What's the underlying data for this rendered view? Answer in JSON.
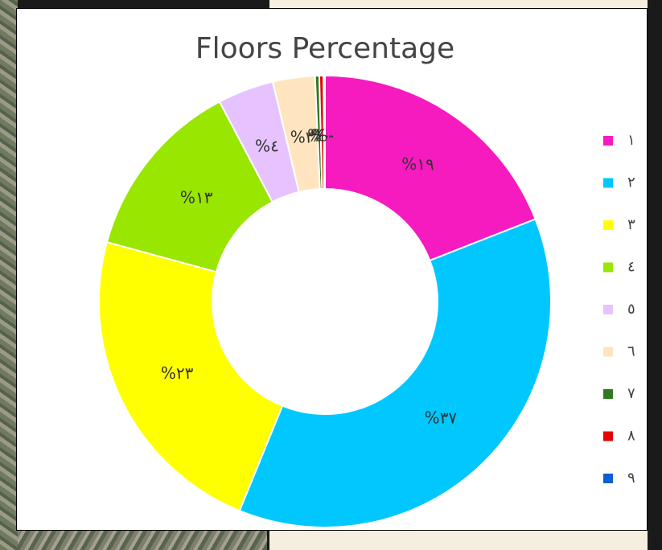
{
  "chart_data": {
    "type": "donut",
    "title": "Floors Percentage",
    "categories": [
      "١",
      "٢",
      "٣",
      "٤",
      "٥",
      "٦",
      "٧",
      "٨",
      "٩"
    ],
    "values": [
      19,
      37,
      23,
      13,
      4,
      3,
      0.3,
      0.3,
      0.1
    ],
    "value_labels": [
      "%١٩",
      "%٣٧",
      "%٢٣",
      "%١٣",
      "%٤",
      "%٣",
      "%٠",
      "%٠",
      "%٠"
    ],
    "colors": [
      "#f51bbf",
      "#00c8ff",
      "#ffff00",
      "#99e600",
      "#e6c3ff",
      "#ffe5bf",
      "#2d7a1f",
      "#e60000",
      "#0a5fd6"
    ],
    "legend": "right"
  }
}
